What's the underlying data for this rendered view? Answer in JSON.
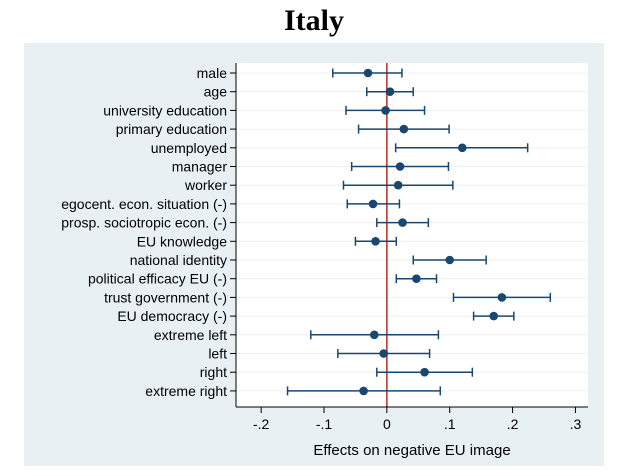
{
  "chart_data": {
    "type": "coefficient-plot",
    "title": "Italy",
    "xlabel": "Effects on negative EU image",
    "ylabel": "",
    "xlim": [
      -0.24,
      0.32
    ],
    "xticks": [
      -0.2,
      -0.1,
      0,
      0.1,
      0.2,
      0.3
    ],
    "xtick_labels": [
      "-.2",
      "-.1",
      "0",
      ".1",
      ".2",
      ".3"
    ],
    "reference_line": 0,
    "colors": {
      "background": "#e9f0f4",
      "plot_area": "#ffffff",
      "marker": "#1a476f",
      "reference_line": "#c0392b"
    },
    "variables": [
      {
        "label": "male",
        "estimate": -0.03,
        "ci_low": -0.086,
        "ci_high": 0.024
      },
      {
        "label": "age",
        "estimate": 0.005,
        "ci_low": -0.032,
        "ci_high": 0.042
      },
      {
        "label": "university education",
        "estimate": -0.002,
        "ci_low": -0.065,
        "ci_high": 0.06
      },
      {
        "label": "primary education",
        "estimate": 0.027,
        "ci_low": -0.045,
        "ci_high": 0.099
      },
      {
        "label": "unemployed",
        "estimate": 0.12,
        "ci_low": 0.014,
        "ci_high": 0.224
      },
      {
        "label": "manager",
        "estimate": 0.021,
        "ci_low": -0.056,
        "ci_high": 0.098
      },
      {
        "label": "worker",
        "estimate": 0.018,
        "ci_low": -0.069,
        "ci_high": 0.105
      },
      {
        "label": "egocent. econ. situation (-)",
        "estimate": -0.022,
        "ci_low": -0.063,
        "ci_high": 0.02
      },
      {
        "label": "prosp. sociotropic econ. (-)",
        "estimate": 0.025,
        "ci_low": -0.016,
        "ci_high": 0.066
      },
      {
        "label": "EU knowledge",
        "estimate": -0.018,
        "ci_low": -0.05,
        "ci_high": 0.015
      },
      {
        "label": "national identity",
        "estimate": 0.1,
        "ci_low": 0.042,
        "ci_high": 0.158
      },
      {
        "label": "political efficacy EU (-)",
        "estimate": 0.047,
        "ci_low": 0.015,
        "ci_high": 0.079
      },
      {
        "label": "trust government (-)",
        "estimate": 0.183,
        "ci_low": 0.106,
        "ci_high": 0.26
      },
      {
        "label": "EU democracy (-)",
        "estimate": 0.17,
        "ci_low": 0.138,
        "ci_high": 0.202
      },
      {
        "label": "extreme left",
        "estimate": -0.02,
        "ci_low": -0.121,
        "ci_high": 0.082
      },
      {
        "label": "left",
        "estimate": -0.005,
        "ci_low": -0.078,
        "ci_high": 0.068
      },
      {
        "label": "right",
        "estimate": 0.06,
        "ci_low": -0.016,
        "ci_high": 0.136
      },
      {
        "label": "extreme right",
        "estimate": -0.037,
        "ci_low": -0.158,
        "ci_high": 0.085
      }
    ]
  }
}
